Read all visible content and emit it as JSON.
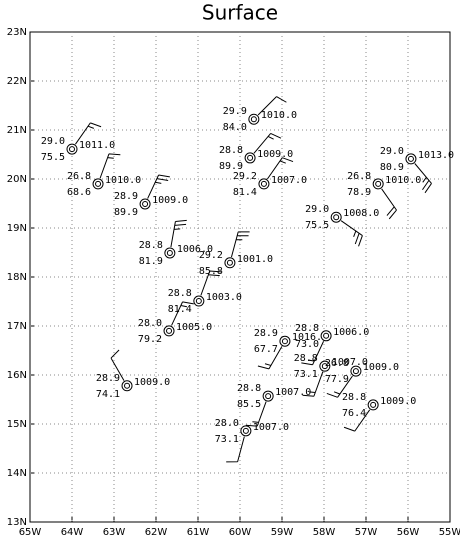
{
  "chart_data": {
    "type": "station-plot",
    "title": "Surface",
    "xlim": [
      -65,
      -55
    ],
    "ylim": [
      13,
      23
    ],
    "xticks": [
      {
        "value": -65,
        "label": "65W"
      },
      {
        "value": -64,
        "label": "64W"
      },
      {
        "value": -63,
        "label": "63W"
      },
      {
        "value": -62,
        "label": "62W"
      },
      {
        "value": -61,
        "label": "61W"
      },
      {
        "value": -60,
        "label": "60W"
      },
      {
        "value": -59,
        "label": "59W"
      },
      {
        "value": -58,
        "label": "58W"
      },
      {
        "value": -57,
        "label": "57W"
      },
      {
        "value": -56,
        "label": "56W"
      },
      {
        "value": -55,
        "label": "55W"
      }
    ],
    "yticks": [
      {
        "value": 13,
        "label": "13N"
      },
      {
        "value": 14,
        "label": "14N"
      },
      {
        "value": 15,
        "label": "15N"
      },
      {
        "value": 16,
        "label": "16N"
      },
      {
        "value": 17,
        "label": "17N"
      },
      {
        "value": 18,
        "label": "18N"
      },
      {
        "value": 19,
        "label": "19N"
      },
      {
        "value": 20,
        "label": "20N"
      },
      {
        "value": 21,
        "label": "21N"
      },
      {
        "value": 22,
        "label": "22N"
      },
      {
        "value": 23,
        "label": "23N"
      }
    ],
    "grid": true,
    "stations": [
      {
        "lon": -64.0,
        "lat": 20.61,
        "temperature": "29.0",
        "dewpoint": "75.5",
        "pressure": "1011.0",
        "wind_dir": 35,
        "wind_speed": 15
      },
      {
        "lon": -63.38,
        "lat": 19.9,
        "temperature": "26.8",
        "dewpoint": "68.6",
        "pressure": "1010.0",
        "wind_dir": 20,
        "wind_speed": 15
      },
      {
        "lon": -62.26,
        "lat": 19.49,
        "temperature": "28.9",
        "dewpoint": "89.9",
        "pressure": "1009.0",
        "wind_dir": 25,
        "wind_speed": 25
      },
      {
        "lon": -59.67,
        "lat": 21.22,
        "temperature": "29.9",
        "dewpoint": "84.0",
        "pressure": "1010.0",
        "wind_dir": 45,
        "wind_speed": 10
      },
      {
        "lon": -59.76,
        "lat": 20.43,
        "temperature": "28.8",
        "dewpoint": "89.9",
        "pressure": "1009.0",
        "wind_dir": 40,
        "wind_speed": 15
      },
      {
        "lon": -59.43,
        "lat": 19.9,
        "temperature": "29.2",
        "dewpoint": "81.4",
        "pressure": "1007.0",
        "wind_dir": 35,
        "wind_speed": 15
      },
      {
        "lon": -55.93,
        "lat": 20.41,
        "temperature": "29.0",
        "dewpoint": "80.9",
        "pressure": "1013.0",
        "wind_dir": 140,
        "wind_speed": 25
      },
      {
        "lon": -56.71,
        "lat": 19.9,
        "temperature": "26.8",
        "dewpoint": "78.9",
        "pressure": "1010.0",
        "wind_dir": 145,
        "wind_speed": 20
      },
      {
        "lon": -57.71,
        "lat": 19.22,
        "temperature": "29.0",
        "dewpoint": "75.5",
        "pressure": "1008.0",
        "wind_dir": 125,
        "wind_speed": 25
      },
      {
        "lon": -61.67,
        "lat": 18.49,
        "temperature": "28.8",
        "dewpoint": "81.9",
        "pressure": "1006.0",
        "wind_dir": 10,
        "wind_speed": 25
      },
      {
        "lon": -60.24,
        "lat": 18.29,
        "temperature": "29.2",
        "dewpoint": "85.8",
        "pressure": "1001.0",
        "wind_dir": 15,
        "wind_speed": 25
      },
      {
        "lon": -60.98,
        "lat": 17.51,
        "temperature": "28.8",
        "dewpoint": "81.4",
        "pressure": "1003.0",
        "wind_dir": 20,
        "wind_speed": 20
      },
      {
        "lon": -61.69,
        "lat": 16.9,
        "temperature": "28.0",
        "dewpoint": "79.2",
        "pressure": "1005.0",
        "wind_dir": 25,
        "wind_speed": 15
      },
      {
        "lon": -58.93,
        "lat": 16.69,
        "temperature": "28.9",
        "dewpoint": "67.7",
        "pressure": "1016.0",
        "wind_dir": 210,
        "wind_speed": 15
      },
      {
        "lon": -57.95,
        "lat": 16.8,
        "temperature": "28.8",
        "dewpoint": "73.0",
        "pressure": "1006.0",
        "wind_dir": 205,
        "wind_speed": 15
      },
      {
        "lon": -57.98,
        "lat": 16.18,
        "temperature": "28.8",
        "dewpoint": "73.1",
        "pressure": "1007.0",
        "wind_dir": 200,
        "wind_speed": 15
      },
      {
        "lon": -57.24,
        "lat": 16.08,
        "temperature": "26.8",
        "dewpoint": "77.9",
        "pressure": "1009.0",
        "wind_dir": 215,
        "wind_speed": 15
      },
      {
        "lon": -62.69,
        "lat": 15.78,
        "temperature": "28.9",
        "dewpoint": "74.1",
        "pressure": "1009.0",
        "wind_dir": 330,
        "wind_speed": 10
      },
      {
        "lon": -59.33,
        "lat": 15.57,
        "temperature": "28.8",
        "dewpoint": "85.5",
        "pressure": "1007.0",
        "wind_dir": 200,
        "wind_speed": 15
      },
      {
        "lon": -59.86,
        "lat": 14.86,
        "temperature": "28.0",
        "dewpoint": "73.1",
        "pressure": "1007.0",
        "wind_dir": 195,
        "wind_speed": 10
      },
      {
        "lon": -56.83,
        "lat": 15.39,
        "temperature": "28.8",
        "dewpoint": "76.4",
        "pressure": "1009.0",
        "wind_dir": 215,
        "wind_speed": 10
      }
    ]
  }
}
